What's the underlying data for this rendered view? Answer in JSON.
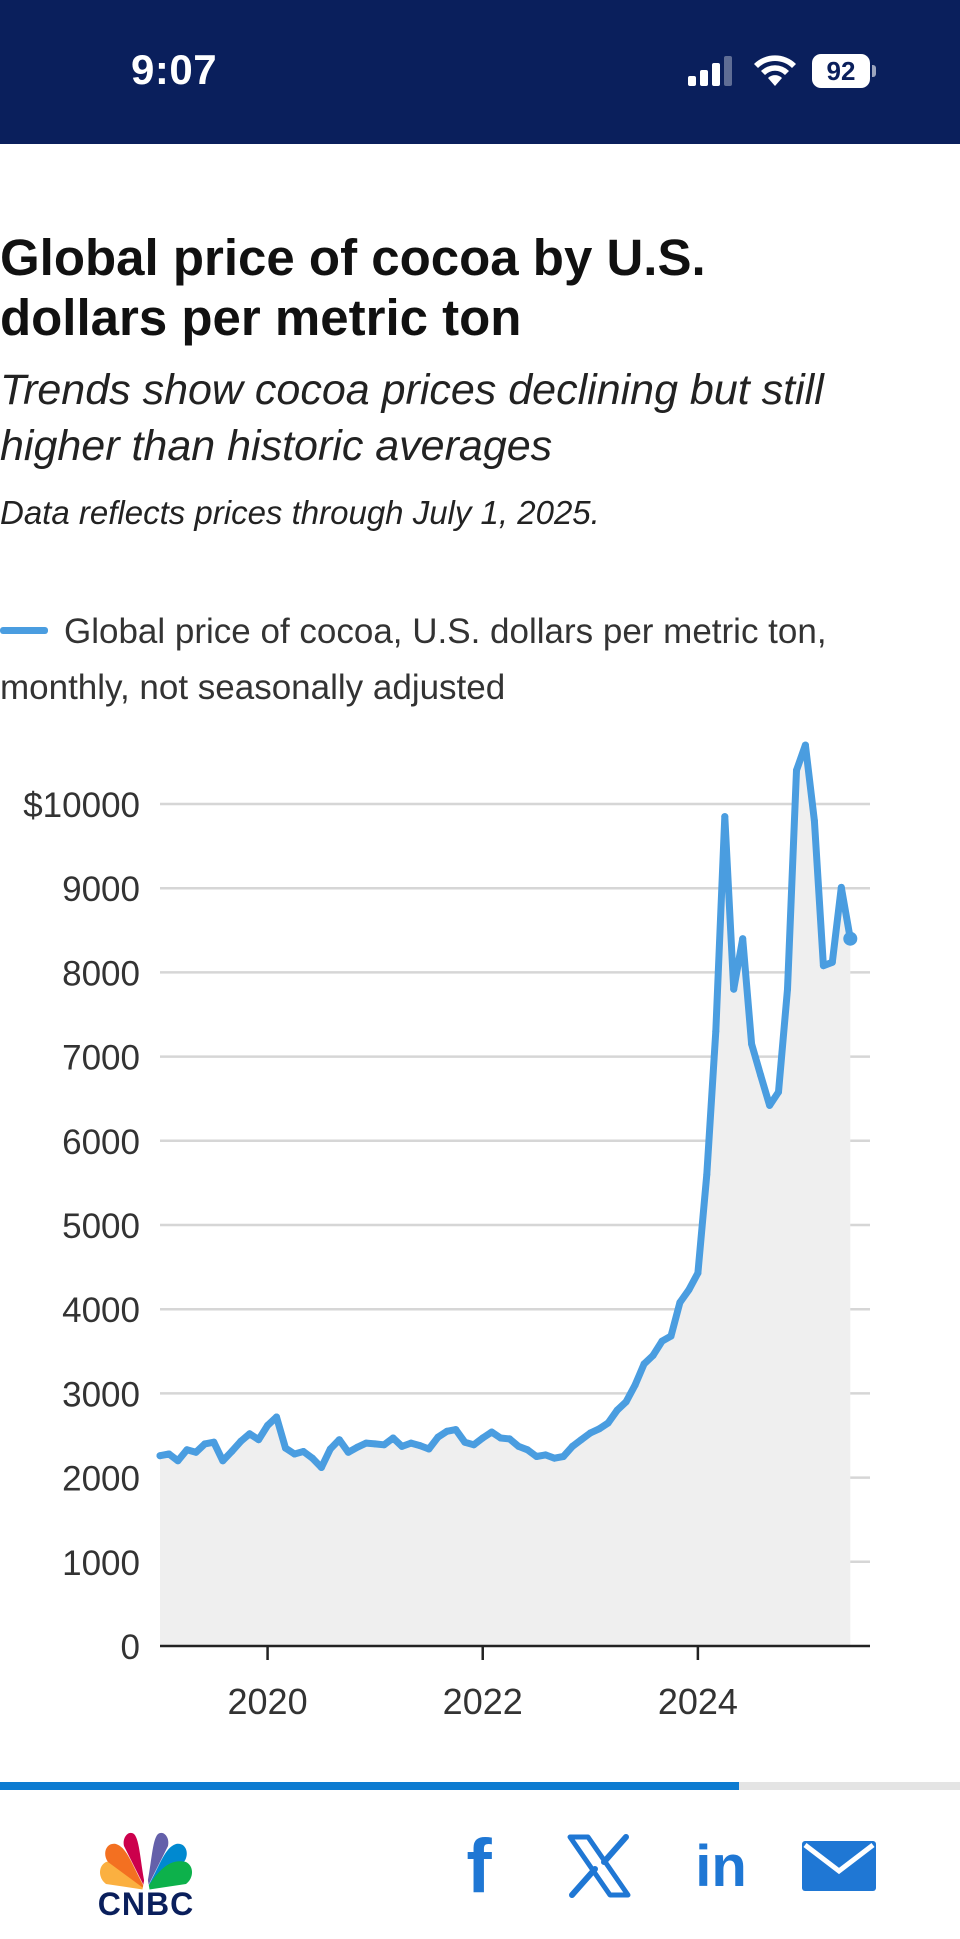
{
  "status_bar": {
    "time": "9:07",
    "battery": "92",
    "icons": [
      "signal-icon",
      "wifi-icon",
      "battery-icon"
    ]
  },
  "header": {
    "title": "Global price of cocoa by U.S. dollars per metric ton",
    "subtitle": "Trends show cocoa prices declining but still higher than historic averages",
    "note": "Data reflects prices through July 1, 2025."
  },
  "legend": {
    "label": "Global price of cocoa, U.S. dollars per metric ton, monthly, not seasonally adjusted"
  },
  "colors": {
    "line": "#4a9de0",
    "area": "#efefef",
    "header_bg": "#0a1f5c",
    "progress": "#0c7bd1",
    "icon_blue": "#1f77d4"
  },
  "chart_data": {
    "type": "area",
    "title": "Global price of cocoa by U.S. dollars per metric ton",
    "xlabel": "",
    "ylabel": "",
    "ylim": [
      0,
      10000
    ],
    "y_ticks": [
      0,
      1000,
      2000,
      3000,
      4000,
      5000,
      6000,
      7000,
      8000,
      9000,
      10000
    ],
    "y_tick_labels": [
      "0",
      "1000",
      "2000",
      "3000",
      "4000",
      "5000",
      "6000",
      "7000",
      "8000",
      "9000",
      "$10000"
    ],
    "x_ticks": [
      2020,
      2022,
      2024
    ],
    "x_tick_labels": [
      "2020",
      "2022",
      "2024"
    ],
    "xlim": [
      2019.0,
      2025.6
    ],
    "grid": true,
    "series": [
      {
        "name": "Global price of cocoa, U.S. dollars per metric ton, monthly, not seasonally adjusted",
        "x_start": 2019.0,
        "step": 0.08333,
        "values": [
          2260,
          2280,
          2200,
          2330,
          2300,
          2400,
          2420,
          2200,
          2310,
          2430,
          2520,
          2450,
          2620,
          2720,
          2350,
          2280,
          2310,
          2230,
          2120,
          2340,
          2450,
          2300,
          2360,
          2410,
          2400,
          2390,
          2470,
          2370,
          2410,
          2380,
          2340,
          2480,
          2550,
          2570,
          2420,
          2390,
          2470,
          2540,
          2470,
          2460,
          2370,
          2330,
          2250,
          2270,
          2230,
          2250,
          2370,
          2450,
          2530,
          2580,
          2650,
          2800,
          2900,
          3100,
          3350,
          3450,
          3620,
          3680,
          4080,
          4230,
          4430,
          5600,
          7300,
          9850,
          7800,
          8400,
          7150,
          6780,
          6420,
          6580,
          7800,
          10400,
          10700,
          9800,
          8080,
          8120,
          9010,
          8400
        ]
      }
    ]
  },
  "share_bar": {
    "brand": "CNBC",
    "progress_fraction": 0.77,
    "icons": [
      "facebook-icon",
      "x-icon",
      "linkedin-icon",
      "mail-icon"
    ],
    "facebook_glyph": "f",
    "linkedin_glyph": "in"
  }
}
